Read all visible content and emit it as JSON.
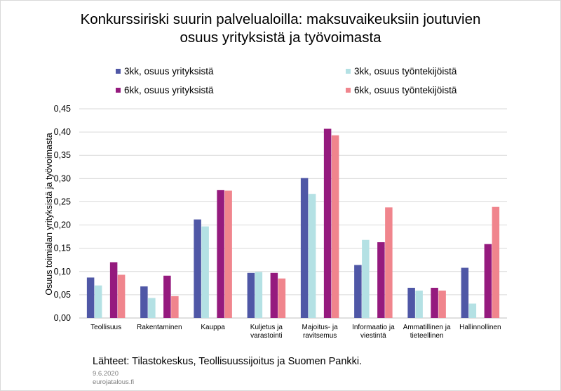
{
  "chart_data": {
    "type": "bar",
    "title_lines": [
      "Konkurssiriski suurin palvelualoilla: maksuvaikeuksiin joutuvien",
      "osuus yrityksistä ja työvoimasta"
    ],
    "ylabel": "Osuus toimialan  yrityksistä  ja työvoimasta",
    "ylim": [
      0,
      0.45
    ],
    "yticks": [
      "0,00",
      "0,05",
      "0,10",
      "0,15",
      "0,20",
      "0,25",
      "0,30",
      "0,35",
      "0,40",
      "0,45"
    ],
    "grid": true,
    "legend_position": "top",
    "categories": [
      [
        "Teollisuus"
      ],
      [
        "Rakentaminen"
      ],
      [
        "Kauppa"
      ],
      [
        "Kuljetus ja",
        "varastointi"
      ],
      [
        "Majoitus- ja",
        "ravitsemus"
      ],
      [
        "Informaatio ja",
        "viestintä"
      ],
      [
        "Ammatillinen ja",
        "tieteellinen"
      ],
      [
        "Hallinnollinen"
      ]
    ],
    "series": [
      {
        "name": "3kk, osuus yrityksistä",
        "color": "#4f57a6",
        "values": [
          0.087,
          0.068,
          0.212,
          0.097,
          0.301,
          0.114,
          0.065,
          0.108
        ]
      },
      {
        "name": "3kk, osuus työntekijöistä",
        "color": "#b4e1e4",
        "values": [
          0.07,
          0.043,
          0.197,
          0.099,
          0.267,
          0.168,
          0.059,
          0.031
        ]
      },
      {
        "name": "6kk, osuus yrityksistä",
        "color": "#951a7e",
        "values": [
          0.12,
          0.091,
          0.275,
          0.097,
          0.407,
          0.163,
          0.065,
          0.159
        ]
      },
      {
        "name": "6kk, osuus työntekijöistä",
        "color": "#f0858d",
        "values": [
          0.093,
          0.047,
          0.274,
          0.085,
          0.393,
          0.238,
          0.059,
          0.239
        ]
      }
    ]
  },
  "footer": {
    "source": "Lähteet: Tilastokeskus, Teollisuussijoitus  ja Suomen Pankki.",
    "date": "9.6.2020",
    "site": "eurojatalous.fi"
  }
}
